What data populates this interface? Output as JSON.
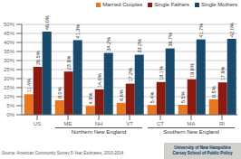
{
  "chart_data": {
    "type": "bar",
    "categories": [
      "US",
      "ME",
      "NH",
      "VT",
      "CT",
      "MA",
      "RI"
    ],
    "series": [
      {
        "name": "Married Couples",
        "color": "#E87820",
        "values": [
          11.4,
          8.0,
          4.9,
          6.6,
          5.4,
          5.5,
          8.5
        ],
        "value_labels": [
          "11.4%",
          "8.0%",
          "4.9%",
          "6.6%",
          "5.4%",
          "5.5%",
          "8.5%"
        ]
      },
      {
        "name": "Single Fathers",
        "color": "#8B1A10",
        "values": [
          26.5,
          23.9,
          14.0,
          17.2,
          18.1,
          19.6,
          17.9
        ],
        "value_labels": [
          "26.5%",
          "23.9%",
          "14.0%",
          "17.2%",
          "18.1%",
          "19.6%",
          "17.9%"
        ]
      },
      {
        "name": "Single Mothers",
        "color": "#1A4A6B",
        "values": [
          46.0,
          41.3,
          34.2,
          33.2,
          36.7,
          41.7,
          42.0
        ],
        "value_labels": [
          "46.0%",
          "41.3%",
          "34.2%",
          "33.2%",
          "36.7%",
          "41.7%",
          "42.0%"
        ]
      }
    ],
    "ylim": [
      0,
      50
    ],
    "yticks": [
      {
        "value": 0,
        "label": "0%"
      },
      {
        "value": 5,
        "label": "5%"
      },
      {
        "value": 10,
        "label": "10%"
      },
      {
        "value": 15,
        "label": "15%"
      },
      {
        "value": 20,
        "label": "20%"
      },
      {
        "value": 25,
        "label": "25%"
      },
      {
        "value": 30,
        "label": "30%"
      },
      {
        "value": 35,
        "label": "35%"
      },
      {
        "value": 40,
        "label": "40%"
      },
      {
        "value": 45,
        "label": "45%"
      },
      {
        "value": 50,
        "label": "50%"
      }
    ],
    "grid": true,
    "legend": "upper right",
    "data_labels": true,
    "annotations": [
      "Northern New England",
      "Southern New England",
      "Source: American Community Survey 5-Year Estimates, 2010-2014",
      "University of New Hampshire",
      "Carsey School of Public Policy"
    ]
  }
}
